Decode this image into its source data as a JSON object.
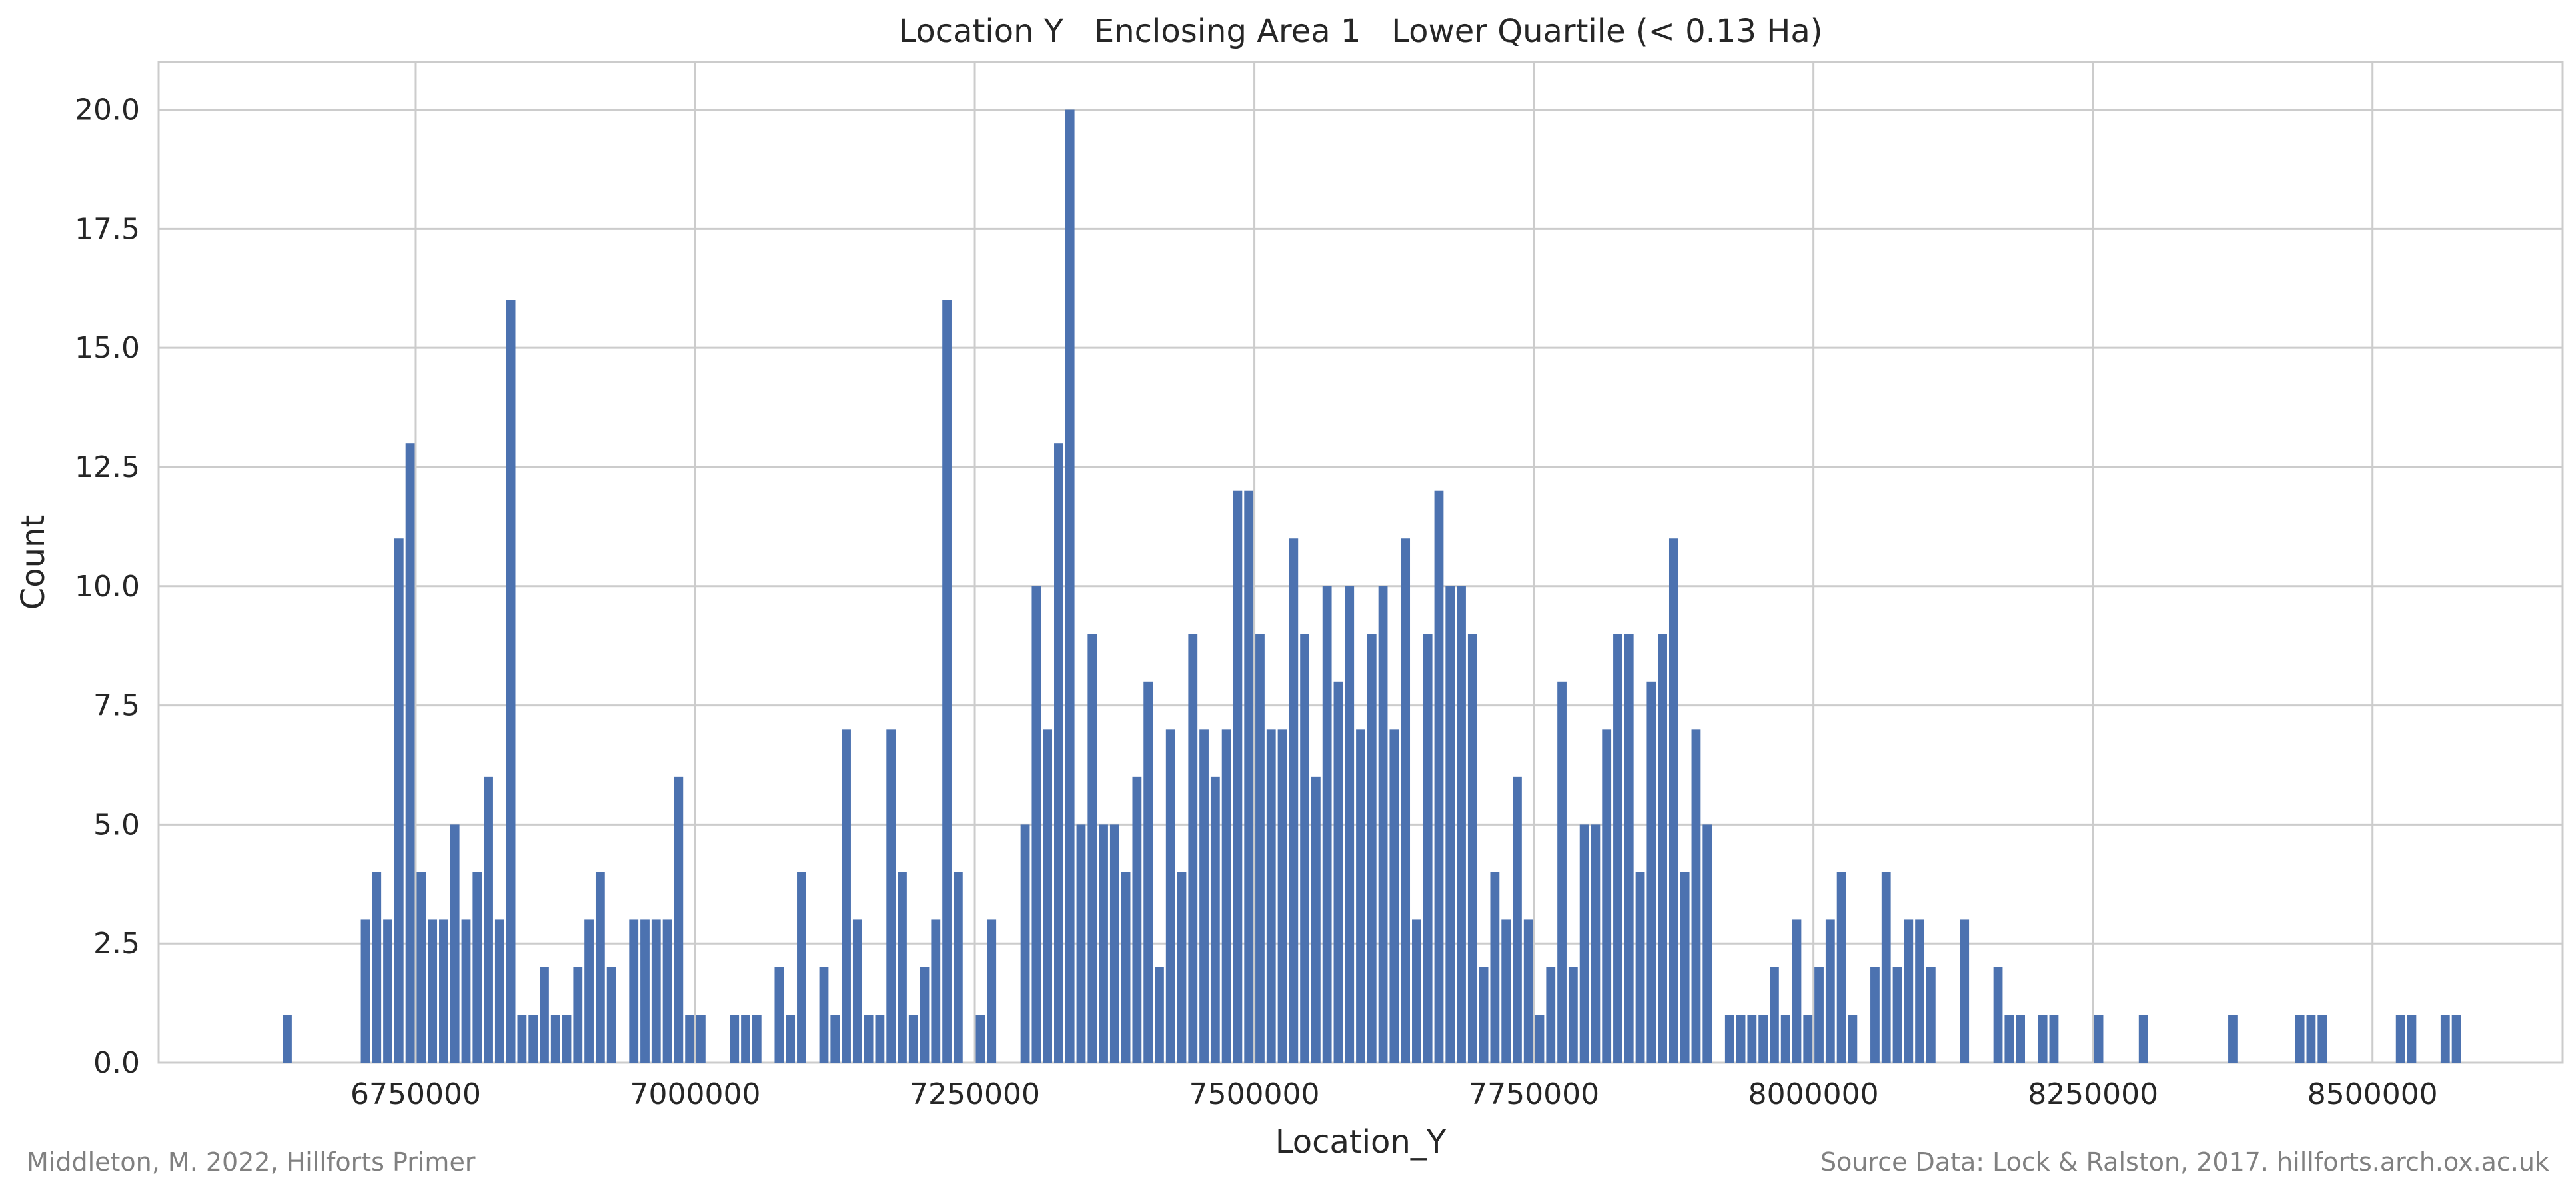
{
  "chart_data": {
    "type": "bar",
    "title": "Location Y   Enclosing Area 1   Lower Quartile (< 0.13 Ha)",
    "xlabel": "Location_Y",
    "ylabel": "Count",
    "xlim": [
      6520000,
      8670000
    ],
    "ylim": [
      0,
      21
    ],
    "xticks": [
      "6750000",
      "7000000",
      "7250000",
      "7500000",
      "7750000",
      "8000000",
      "8250000",
      "8500000"
    ],
    "yticks": [
      "0.0",
      "2.5",
      "5.0",
      "7.5",
      "10.0",
      "12.5",
      "15.0",
      "17.5",
      "20.0"
    ],
    "grid": true,
    "bar_color": "#4c72b0",
    "bin_width": 10000,
    "bins": [
      [
        6630000,
        1
      ],
      [
        6700000,
        3
      ],
      [
        6710000,
        4
      ],
      [
        6720000,
        3
      ],
      [
        6730000,
        11
      ],
      [
        6740000,
        13
      ],
      [
        6750000,
        4
      ],
      [
        6760000,
        3
      ],
      [
        6770000,
        3
      ],
      [
        6780000,
        5
      ],
      [
        6790000,
        3
      ],
      [
        6800000,
        4
      ],
      [
        6810000,
        6
      ],
      [
        6820000,
        3
      ],
      [
        6830000,
        16
      ],
      [
        6840000,
        1
      ],
      [
        6850000,
        1
      ],
      [
        6860000,
        2
      ],
      [
        6870000,
        1
      ],
      [
        6880000,
        1
      ],
      [
        6890000,
        2
      ],
      [
        6900000,
        3
      ],
      [
        6910000,
        4
      ],
      [
        6920000,
        2
      ],
      [
        6940000,
        3
      ],
      [
        6950000,
        3
      ],
      [
        6960000,
        3
      ],
      [
        6970000,
        3
      ],
      [
        6980000,
        6
      ],
      [
        6990000,
        1
      ],
      [
        7000000,
        1
      ],
      [
        7030000,
        1
      ],
      [
        7040000,
        1
      ],
      [
        7050000,
        1
      ],
      [
        7070000,
        2
      ],
      [
        7080000,
        1
      ],
      [
        7090000,
        4
      ],
      [
        7110000,
        2
      ],
      [
        7120000,
        1
      ],
      [
        7130000,
        7
      ],
      [
        7140000,
        3
      ],
      [
        7150000,
        1
      ],
      [
        7160000,
        1
      ],
      [
        7170000,
        7
      ],
      [
        7180000,
        4
      ],
      [
        7190000,
        1
      ],
      [
        7200000,
        2
      ],
      [
        7210000,
        3
      ],
      [
        7220000,
        16
      ],
      [
        7230000,
        4
      ],
      [
        7250000,
        1
      ],
      [
        7260000,
        3
      ],
      [
        7290000,
        5
      ],
      [
        7300000,
        10
      ],
      [
        7310000,
        7
      ],
      [
        7320000,
        13
      ],
      [
        7330000,
        20
      ],
      [
        7340000,
        5
      ],
      [
        7350000,
        9
      ],
      [
        7360000,
        5
      ],
      [
        7370000,
        5
      ],
      [
        7380000,
        4
      ],
      [
        7390000,
        6
      ],
      [
        7400000,
        8
      ],
      [
        7410000,
        2
      ],
      [
        7420000,
        7
      ],
      [
        7430000,
        4
      ],
      [
        7440000,
        9
      ],
      [
        7450000,
        7
      ],
      [
        7460000,
        6
      ],
      [
        7470000,
        7
      ],
      [
        7480000,
        12
      ],
      [
        7490000,
        12
      ],
      [
        7500000,
        9
      ],
      [
        7510000,
        7
      ],
      [
        7520000,
        7
      ],
      [
        7530000,
        11
      ],
      [
        7540000,
        9
      ],
      [
        7550000,
        6
      ],
      [
        7560000,
        10
      ],
      [
        7570000,
        8
      ],
      [
        7580000,
        10
      ],
      [
        7590000,
        7
      ],
      [
        7600000,
        9
      ],
      [
        7610000,
        10
      ],
      [
        7620000,
        7
      ],
      [
        7630000,
        11
      ],
      [
        7640000,
        3
      ],
      [
        7650000,
        9
      ],
      [
        7660000,
        12
      ],
      [
        7670000,
        10
      ],
      [
        7680000,
        10
      ],
      [
        7690000,
        9
      ],
      [
        7700000,
        2
      ],
      [
        7710000,
        4
      ],
      [
        7720000,
        3
      ],
      [
        7730000,
        6
      ],
      [
        7740000,
        3
      ],
      [
        7750000,
        1
      ],
      [
        7760000,
        2
      ],
      [
        7770000,
        8
      ],
      [
        7780000,
        2
      ],
      [
        7790000,
        5
      ],
      [
        7800000,
        5
      ],
      [
        7810000,
        7
      ],
      [
        7820000,
        9
      ],
      [
        7830000,
        9
      ],
      [
        7840000,
        4
      ],
      [
        7850000,
        8
      ],
      [
        7860000,
        9
      ],
      [
        7870000,
        11
      ],
      [
        7880000,
        4
      ],
      [
        7890000,
        7
      ],
      [
        7900000,
        5
      ],
      [
        7920000,
        1
      ],
      [
        7930000,
        1
      ],
      [
        7940000,
        1
      ],
      [
        7950000,
        1
      ],
      [
        7960000,
        2
      ],
      [
        7970000,
        1
      ],
      [
        7980000,
        3
      ],
      [
        7990000,
        1
      ],
      [
        8000000,
        2
      ],
      [
        8010000,
        3
      ],
      [
        8020000,
        4
      ],
      [
        8030000,
        1
      ],
      [
        8050000,
        2
      ],
      [
        8060000,
        4
      ],
      [
        8070000,
        2
      ],
      [
        8080000,
        3
      ],
      [
        8090000,
        3
      ],
      [
        8100000,
        2
      ],
      [
        8130000,
        3
      ],
      [
        8160000,
        2
      ],
      [
        8170000,
        1
      ],
      [
        8180000,
        1
      ],
      [
        8200000,
        1
      ],
      [
        8210000,
        1
      ],
      [
        8250000,
        1
      ],
      [
        8290000,
        1
      ],
      [
        8370000,
        1
      ],
      [
        8430000,
        1
      ],
      [
        8440000,
        1
      ],
      [
        8450000,
        1
      ],
      [
        8520000,
        1
      ],
      [
        8530000,
        1
      ],
      [
        8560000,
        1
      ],
      [
        8570000,
        1
      ]
    ]
  },
  "footer": {
    "left": "Middleton, M. 2022, Hillforts Primer",
    "right": "Source Data: Lock & Ralston, 2017. hillforts.arch.ox.ac.uk"
  }
}
